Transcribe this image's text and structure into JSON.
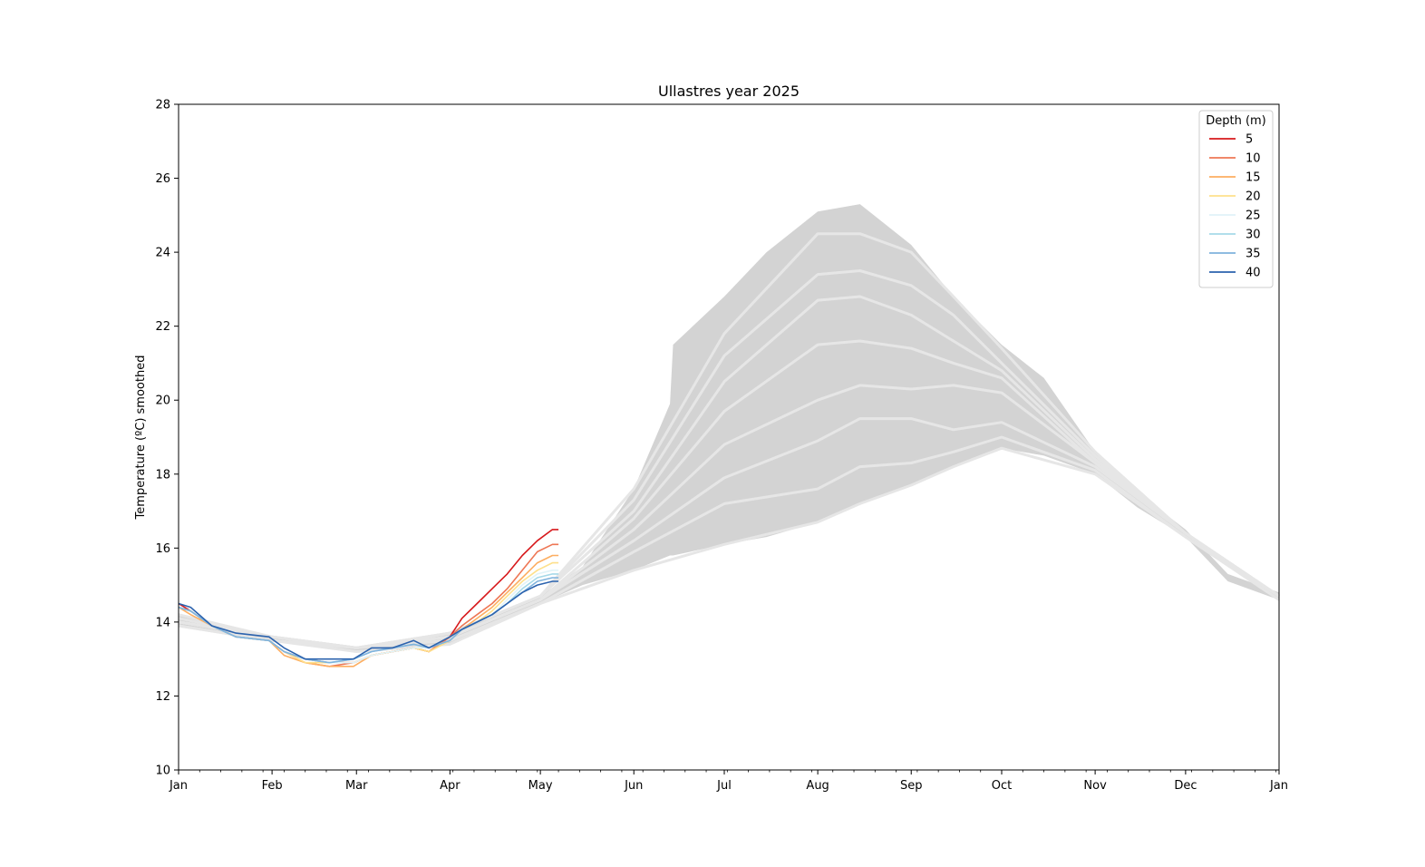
{
  "chart_data": {
    "type": "line",
    "title": "Ullastres year 2025",
    "xlabel": "",
    "ylabel": "Temperature (ºC) smoothed",
    "ylim": [
      10,
      28
    ],
    "yticks": [
      10,
      12,
      14,
      16,
      18,
      20,
      22,
      24,
      26,
      28
    ],
    "xlim": [
      "2025-01-01",
      "2026-01-01"
    ],
    "xticks": [
      {
        "date": "2025-01-01",
        "label": "Jan"
      },
      {
        "date": "2025-02-01",
        "label": "Feb"
      },
      {
        "date": "2025-03-01",
        "label": "Mar"
      },
      {
        "date": "2025-04-01",
        "label": "Apr"
      },
      {
        "date": "2025-05-01",
        "label": "May"
      },
      {
        "date": "2025-06-01",
        "label": "Jun"
      },
      {
        "date": "2025-07-01",
        "label": "Jul"
      },
      {
        "date": "2025-08-01",
        "label": "Aug"
      },
      {
        "date": "2025-09-01",
        "label": "Sep"
      },
      {
        "date": "2025-10-01",
        "label": "Oct"
      },
      {
        "date": "2025-11-01",
        "label": "Nov"
      },
      {
        "date": "2025-12-01",
        "label": "Dec"
      },
      {
        "date": "2026-01-01",
        "label": "Jan"
      }
    ],
    "grid": false,
    "legend": {
      "title": "Depth (m)",
      "placement": "top-right"
    },
    "colors": {
      "background_band": "#d3d3d3",
      "climatology_lines": "#e6e6e6"
    },
    "background_band": {
      "x": [
        "2025-01-01",
        "2025-02-01",
        "2025-03-01",
        "2025-04-01",
        "2025-05-01",
        "2025-05-15",
        "2025-06-01",
        "2025-06-13",
        "2025-06-14",
        "2025-07-01",
        "2025-07-15",
        "2025-08-01",
        "2025-08-15",
        "2025-09-01",
        "2025-09-15",
        "2025-10-01",
        "2025-10-15",
        "2025-11-01",
        "2025-11-15",
        "2025-12-01",
        "2025-12-15",
        "2026-01-01"
      ],
      "upper": [
        14.2,
        13.6,
        13.3,
        13.7,
        14.7,
        15.5,
        17.6,
        19.9,
        21.5,
        22.8,
        24.0,
        25.1,
        25.3,
        24.2,
        22.8,
        21.5,
        20.6,
        18.6,
        17.5,
        16.5,
        15.3,
        14.8
      ],
      "lower": [
        13.9,
        13.5,
        13.2,
        13.4,
        14.5,
        15.0,
        15.4,
        15.8,
        15.8,
        16.1,
        16.3,
        16.7,
        17.2,
        17.7,
        18.2,
        18.7,
        18.5,
        18.0,
        17.1,
        16.3,
        15.1,
        14.6
      ]
    },
    "climatology_lines": [
      {
        "x": [
          "2025-01-01",
          "2025-02-01",
          "2025-03-01",
          "2025-04-01",
          "2025-05-01",
          "2025-06-01",
          "2025-07-01",
          "2025-08-01",
          "2025-08-15",
          "2025-09-01",
          "2025-09-15",
          "2025-10-01",
          "2025-11-01",
          "2025-12-01",
          "2026-01-01"
        ],
        "values": [
          14.2,
          13.6,
          13.3,
          13.7,
          14.7,
          17.6,
          21.8,
          24.5,
          24.5,
          24.0,
          22.8,
          21.4,
          18.6,
          16.4,
          14.7
        ]
      },
      {
        "x": [
          "2025-01-01",
          "2025-02-01",
          "2025-03-01",
          "2025-04-01",
          "2025-05-01",
          "2025-06-01",
          "2025-07-01",
          "2025-08-01",
          "2025-08-15",
          "2025-09-01",
          "2025-09-15",
          "2025-10-01",
          "2025-11-01",
          "2025-12-01",
          "2026-01-01"
        ],
        "values": [
          14.1,
          13.6,
          13.3,
          13.7,
          14.7,
          17.3,
          21.2,
          23.4,
          23.5,
          23.1,
          22.3,
          21.0,
          18.5,
          16.4,
          14.7
        ]
      },
      {
        "x": [
          "2025-01-01",
          "2025-02-01",
          "2025-03-01",
          "2025-04-01",
          "2025-05-01",
          "2025-06-01",
          "2025-07-01",
          "2025-08-01",
          "2025-08-15",
          "2025-09-01",
          "2025-09-15",
          "2025-10-01",
          "2025-11-01",
          "2025-12-01",
          "2026-01-01"
        ],
        "values": [
          14.1,
          13.6,
          13.3,
          13.7,
          14.7,
          17.0,
          20.5,
          22.7,
          22.8,
          22.3,
          21.6,
          20.8,
          18.4,
          16.4,
          14.7
        ]
      },
      {
        "x": [
          "2025-01-01",
          "2025-02-01",
          "2025-03-01",
          "2025-04-01",
          "2025-05-01",
          "2025-06-01",
          "2025-07-01",
          "2025-08-01",
          "2025-08-15",
          "2025-09-01",
          "2025-09-15",
          "2025-10-01",
          "2025-11-01",
          "2025-12-01",
          "2026-01-01"
        ],
        "values": [
          14.0,
          13.6,
          13.3,
          13.6,
          14.6,
          16.8,
          19.7,
          21.5,
          21.6,
          21.4,
          21.0,
          20.6,
          18.3,
          16.4,
          14.7
        ]
      },
      {
        "x": [
          "2025-01-01",
          "2025-02-01",
          "2025-03-01",
          "2025-04-01",
          "2025-05-01",
          "2025-06-01",
          "2025-07-01",
          "2025-08-01",
          "2025-08-15",
          "2025-09-01",
          "2025-09-15",
          "2025-10-01",
          "2025-11-01",
          "2025-12-01",
          "2026-01-01"
        ],
        "values": [
          14.0,
          13.6,
          13.3,
          13.6,
          14.6,
          16.5,
          18.8,
          20.0,
          20.4,
          20.3,
          20.4,
          20.2,
          18.3,
          16.4,
          14.7
        ]
      },
      {
        "x": [
          "2025-01-01",
          "2025-02-01",
          "2025-03-01",
          "2025-04-01",
          "2025-05-01",
          "2025-06-01",
          "2025-07-01",
          "2025-08-01",
          "2025-08-15",
          "2025-09-01",
          "2025-09-15",
          "2025-10-01",
          "2025-11-01",
          "2025-12-01",
          "2026-01-01"
        ],
        "values": [
          14.0,
          13.6,
          13.3,
          13.6,
          14.6,
          16.2,
          17.9,
          18.9,
          19.5,
          19.5,
          19.2,
          19.4,
          18.2,
          16.4,
          14.7
        ]
      },
      {
        "x": [
          "2025-01-01",
          "2025-02-01",
          "2025-03-01",
          "2025-04-01",
          "2025-05-01",
          "2025-06-01",
          "2025-07-01",
          "2025-08-01",
          "2025-08-15",
          "2025-09-01",
          "2025-09-15",
          "2025-10-01",
          "2025-11-01",
          "2025-12-01",
          "2026-01-01"
        ],
        "values": [
          13.9,
          13.5,
          13.3,
          13.5,
          14.5,
          15.9,
          17.2,
          17.6,
          18.2,
          18.3,
          18.6,
          19.0,
          18.1,
          16.3,
          14.7
        ]
      },
      {
        "x": [
          "2025-01-01",
          "2025-02-01",
          "2025-03-01",
          "2025-04-01",
          "2025-05-01",
          "2025-06-01",
          "2025-07-01",
          "2025-08-01",
          "2025-08-15",
          "2025-09-01",
          "2025-09-15",
          "2025-10-01",
          "2025-11-01",
          "2025-12-01",
          "2026-01-01"
        ],
        "values": [
          13.9,
          13.5,
          13.2,
          13.4,
          14.5,
          15.4,
          16.1,
          16.7,
          17.2,
          17.7,
          18.2,
          18.7,
          18.0,
          16.3,
          14.6
        ]
      }
    ],
    "x": [
      "2025-01-01",
      "2025-01-05",
      "2025-01-12",
      "2025-01-20",
      "2025-01-31",
      "2025-02-05",
      "2025-02-12",
      "2025-02-20",
      "2025-02-28",
      "2025-03-06",
      "2025-03-13",
      "2025-03-20",
      "2025-03-25",
      "2025-04-01",
      "2025-04-05",
      "2025-04-10",
      "2025-04-15",
      "2025-04-20",
      "2025-04-25",
      "2025-04-30",
      "2025-05-05",
      "2025-05-07"
    ],
    "series": [
      {
        "name": "5",
        "color": "#d7191c",
        "values": [
          14.5,
          14.3,
          13.9,
          13.6,
          13.5,
          13.2,
          13.0,
          12.9,
          12.9,
          13.1,
          13.2,
          13.3,
          13.2,
          13.6,
          14.1,
          14.5,
          14.9,
          15.3,
          15.8,
          16.2,
          16.5,
          16.5
        ]
      },
      {
        "name": "10",
        "color": "#ee7755",
        "values": [
          14.4,
          14.3,
          13.9,
          13.6,
          13.5,
          13.2,
          12.9,
          12.8,
          12.9,
          13.1,
          13.2,
          13.3,
          13.2,
          13.6,
          13.9,
          14.2,
          14.5,
          14.9,
          15.4,
          15.9,
          16.1,
          16.1
        ]
      },
      {
        "name": "15",
        "color": "#fdae61",
        "values": [
          14.4,
          14.2,
          13.9,
          13.6,
          13.5,
          13.1,
          12.9,
          12.8,
          12.8,
          13.1,
          13.2,
          13.3,
          13.2,
          13.5,
          13.8,
          14.1,
          14.4,
          14.8,
          15.2,
          15.6,
          15.8,
          15.8
        ]
      },
      {
        "name": "20",
        "color": "#fee08b",
        "values": [
          14.4,
          14.3,
          13.9,
          13.6,
          13.5,
          13.2,
          12.9,
          12.9,
          12.9,
          13.1,
          13.2,
          13.3,
          13.2,
          13.5,
          13.8,
          14.0,
          14.3,
          14.7,
          15.1,
          15.4,
          15.6,
          15.6
        ]
      },
      {
        "name": "25",
        "color": "#e0f3f8",
        "values": [
          14.4,
          14.3,
          13.9,
          13.6,
          13.5,
          13.2,
          13.0,
          12.9,
          12.9,
          13.1,
          13.2,
          13.3,
          13.3,
          13.5,
          13.8,
          14.0,
          14.2,
          14.6,
          15.0,
          15.3,
          15.4,
          15.4
        ]
      },
      {
        "name": "30",
        "color": "#a6d9e8",
        "values": [
          14.4,
          14.3,
          13.9,
          13.6,
          13.5,
          13.2,
          13.0,
          12.9,
          13.0,
          13.2,
          13.3,
          13.4,
          13.3,
          13.5,
          13.8,
          14.0,
          14.2,
          14.5,
          14.9,
          15.2,
          15.3,
          15.3
        ]
      },
      {
        "name": "35",
        "color": "#7fb3dd",
        "values": [
          14.4,
          14.3,
          13.9,
          13.6,
          13.5,
          13.2,
          13.0,
          12.9,
          13.0,
          13.2,
          13.3,
          13.4,
          13.3,
          13.5,
          13.8,
          14.0,
          14.2,
          14.5,
          14.8,
          15.1,
          15.2,
          15.2
        ]
      },
      {
        "name": "40",
        "color": "#2c63ae",
        "values": [
          14.5,
          14.4,
          13.9,
          13.7,
          13.6,
          13.3,
          13.0,
          13.0,
          13.0,
          13.3,
          13.3,
          13.5,
          13.3,
          13.6,
          13.8,
          14.0,
          14.2,
          14.5,
          14.8,
          15.0,
          15.1,
          15.1
        ]
      }
    ]
  }
}
